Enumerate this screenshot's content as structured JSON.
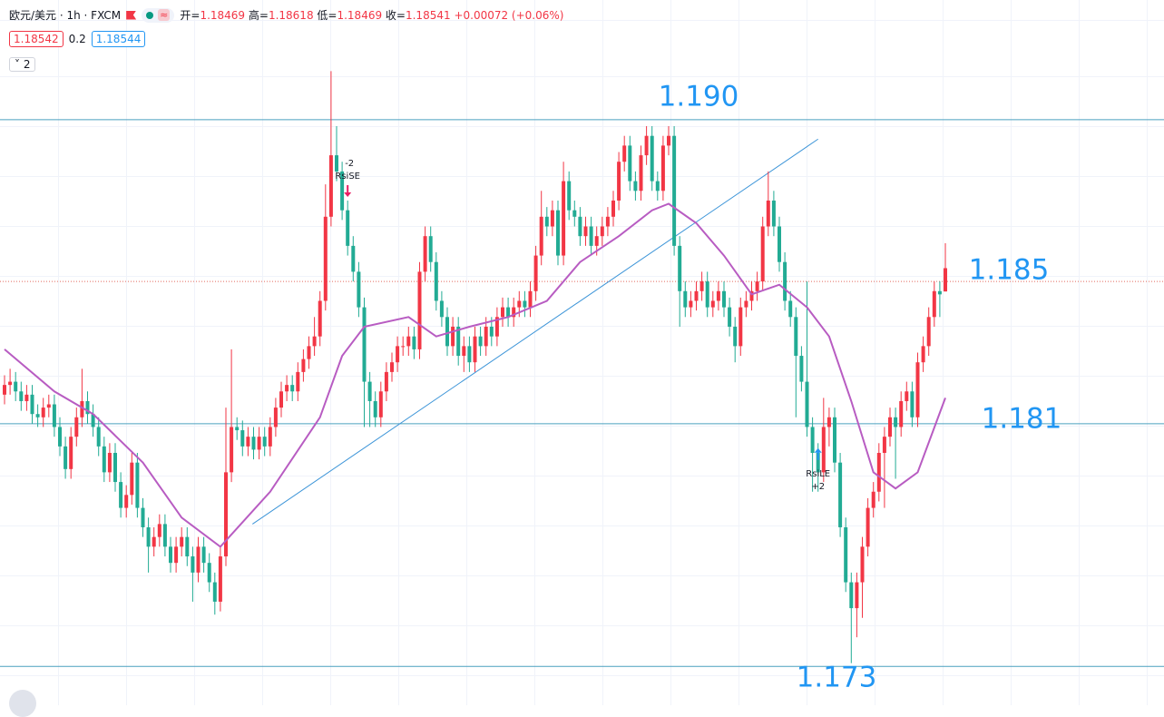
{
  "header": {
    "symbol": "欧元/美元 · 1h · FXCM",
    "ohlc": [
      {
        "label": "开=",
        "value": "1.18469"
      },
      {
        "label": "高=",
        "value": "1.18618"
      },
      {
        "label": "低=",
        "value": "1.18469"
      },
      {
        "label": "收=",
        "value": "1.18541"
      }
    ],
    "change": "+0.00072 (+0.06%)",
    "sell": "1.18542",
    "spread": "0.2",
    "buy": "1.18544",
    "collapse": "2"
  },
  "chart_data": {
    "type": "candlestick",
    "ylim": [
      1.1719,
      1.1937
    ],
    "up_color": "#f23645",
    "down_color": "#22ab94",
    "candles": [
      [
        1.1815,
        1.1821,
        1.1812,
        1.1818
      ],
      [
        1.1818,
        1.1823,
        1.1815,
        1.1819
      ],
      [
        1.1819,
        1.1822,
        1.1813,
        1.1816
      ],
      [
        1.1816,
        1.1819,
        1.181,
        1.1813
      ],
      [
        1.1813,
        1.1818,
        1.181,
        1.1815
      ],
      [
        1.1815,
        1.1818,
        1.1806,
        1.1809
      ],
      [
        1.1809,
        1.1812,
        1.1805,
        1.1808
      ],
      [
        1.1808,
        1.1814,
        1.1805,
        1.1811
      ],
      [
        1.1811,
        1.1815,
        1.1808,
        1.1812
      ],
      [
        1.1812,
        1.1815,
        1.1802,
        1.1805
      ],
      [
        1.1805,
        1.1808,
        1.1796,
        1.1799
      ],
      [
        1.1799,
        1.1802,
        1.1789,
        1.1792
      ],
      [
        1.1792,
        1.1805,
        1.1789,
        1.1802
      ],
      [
        1.1802,
        1.1811,
        1.1799,
        1.1808
      ],
      [
        1.1808,
        1.1823,
        1.1805,
        1.1813
      ],
      [
        1.1813,
        1.1816,
        1.1806,
        1.1809
      ],
      [
        1.1809,
        1.1812,
        1.1802,
        1.1805
      ],
      [
        1.1805,
        1.1808,
        1.1796,
        1.1799
      ],
      [
        1.1799,
        1.1802,
        1.1788,
        1.1791
      ],
      [
        1.1791,
        1.18,
        1.1788,
        1.1797
      ],
      [
        1.1797,
        1.18,
        1.1785,
        1.1788
      ],
      [
        1.1788,
        1.1791,
        1.1777,
        1.178
      ],
      [
        1.178,
        1.1787,
        1.1777,
        1.1784
      ],
      [
        1.1784,
        1.1797,
        1.1781,
        1.1794
      ],
      [
        1.1794,
        1.1797,
        1.1777,
        1.178
      ],
      [
        1.178,
        1.1783,
        1.1771,
        1.1774
      ],
      [
        1.1774,
        1.1777,
        1.176,
        1.1768
      ],
      [
        1.1768,
        1.1774,
        1.1765,
        1.1771
      ],
      [
        1.1771,
        1.1778,
        1.1768,
        1.1775
      ],
      [
        1.1775,
        1.1778,
        1.1765,
        1.1768
      ],
      [
        1.1768,
        1.1771,
        1.176,
        1.1763
      ],
      [
        1.1763,
        1.1771,
        1.176,
        1.1768
      ],
      [
        1.1768,
        1.1774,
        1.1765,
        1.1771
      ],
      [
        1.1771,
        1.1774,
        1.1762,
        1.1765
      ],
      [
        1.1765,
        1.1768,
        1.1751,
        1.176
      ],
      [
        1.176,
        1.1771,
        1.1757,
        1.1768
      ],
      [
        1.1768,
        1.1771,
        1.176,
        1.1763
      ],
      [
        1.1763,
        1.1766,
        1.1754,
        1.1757
      ],
      [
        1.1757,
        1.176,
        1.1747,
        1.1751
      ],
      [
        1.1751,
        1.1768,
        1.1748,
        1.1765
      ],
      [
        1.1765,
        1.1811,
        1.1762,
        1.1791
      ],
      [
        1.1791,
        1.1829,
        1.1788,
        1.1805
      ],
      [
        1.1805,
        1.1808,
        1.1801,
        1.1804
      ],
      [
        1.1804,
        1.1807,
        1.1796,
        1.1799
      ],
      [
        1.1799,
        1.1805,
        1.1796,
        1.1802
      ],
      [
        1.1802,
        1.1805,
        1.1795,
        1.1798
      ],
      [
        1.1798,
        1.1805,
        1.1795,
        1.1802
      ],
      [
        1.1802,
        1.1805,
        1.1796,
        1.1799
      ],
      [
        1.1799,
        1.1808,
        1.1796,
        1.1805
      ],
      [
        1.1805,
        1.1814,
        1.1802,
        1.1811
      ],
      [
        1.1811,
        1.1819,
        1.1808,
        1.1816
      ],
      [
        1.1816,
        1.1821,
        1.1813,
        1.1818
      ],
      [
        1.1818,
        1.1821,
        1.1813,
        1.1816
      ],
      [
        1.1816,
        1.1825,
        1.1813,
        1.1822
      ],
      [
        1.1822,
        1.1829,
        1.1819,
        1.1826
      ],
      [
        1.1826,
        1.1833,
        1.1823,
        1.183
      ],
      [
        1.183,
        1.1839,
        1.1827,
        1.1833
      ],
      [
        1.1833,
        1.1847,
        1.183,
        1.1844
      ],
      [
        1.1844,
        1.188,
        1.1841,
        1.187
      ],
      [
        1.187,
        1.1915,
        1.1867,
        1.1889
      ],
      [
        1.1889,
        1.1898,
        1.1881,
        1.1884
      ],
      [
        1.1884,
        1.1887,
        1.1869,
        1.1872
      ],
      [
        1.1872,
        1.1875,
        1.1858,
        1.1861
      ],
      [
        1.1861,
        1.1864,
        1.185,
        1.1853
      ],
      [
        1.1853,
        1.1856,
        1.1839,
        1.1842
      ],
      [
        1.1842,
        1.1845,
        1.1805,
        1.1819
      ],
      [
        1.1819,
        1.1822,
        1.1805,
        1.1813
      ],
      [
        1.1813,
        1.1816,
        1.1805,
        1.1808
      ],
      [
        1.1808,
        1.1819,
        1.1805,
        1.1816
      ],
      [
        1.1816,
        1.1825,
        1.1813,
        1.1822
      ],
      [
        1.1822,
        1.1828,
        1.1819,
        1.1825
      ],
      [
        1.1825,
        1.1833,
        1.1822,
        1.183
      ],
      [
        1.183,
        1.1833,
        1.1827,
        1.183
      ],
      [
        1.183,
        1.1836,
        1.1827,
        1.1833
      ],
      [
        1.1833,
        1.1836,
        1.1826,
        1.1829
      ],
      [
        1.1829,
        1.1856,
        1.1826,
        1.1853
      ],
      [
        1.1853,
        1.1867,
        1.185,
        1.1864
      ],
      [
        1.1864,
        1.1867,
        1.1853,
        1.1856
      ],
      [
        1.1856,
        1.1859,
        1.1841,
        1.1844
      ],
      [
        1.1844,
        1.1847,
        1.1836,
        1.1839
      ],
      [
        1.1839,
        1.1842,
        1.1827,
        1.183
      ],
      [
        1.183,
        1.1839,
        1.1827,
        1.1836
      ],
      [
        1.1836,
        1.1839,
        1.1824,
        1.1827
      ],
      [
        1.1827,
        1.1833,
        1.1822,
        1.183
      ],
      [
        1.183,
        1.1833,
        1.1822,
        1.1825
      ],
      [
        1.1825,
        1.1836,
        1.1822,
        1.1833
      ],
      [
        1.1833,
        1.1836,
        1.1827,
        1.183
      ],
      [
        1.183,
        1.1839,
        1.1827,
        1.1836
      ],
      [
        1.1836,
        1.1839,
        1.183,
        1.1833
      ],
      [
        1.1833,
        1.1842,
        1.183,
        1.1839
      ],
      [
        1.1839,
        1.1845,
        1.1836,
        1.1842
      ],
      [
        1.1842,
        1.1845,
        1.1836,
        1.1839
      ],
      [
        1.1839,
        1.1845,
        1.1836,
        1.1842
      ],
      [
        1.1842,
        1.1847,
        1.1839,
        1.1844
      ],
      [
        1.1844,
        1.1847,
        1.1839,
        1.1842
      ],
      [
        1.1842,
        1.185,
        1.1839,
        1.1847
      ],
      [
        1.1847,
        1.1861,
        1.1844,
        1.1858
      ],
      [
        1.1858,
        1.1878,
        1.1855,
        1.187
      ],
      [
        1.187,
        1.1873,
        1.1864,
        1.1867
      ],
      [
        1.1867,
        1.1875,
        1.1864,
        1.1872
      ],
      [
        1.1872,
        1.1875,
        1.1855,
        1.1858
      ],
      [
        1.1858,
        1.1887,
        1.1855,
        1.1881
      ],
      [
        1.1881,
        1.1884,
        1.1869,
        1.1872
      ],
      [
        1.1872,
        1.1875,
        1.1867,
        1.187
      ],
      [
        1.187,
        1.1873,
        1.1861,
        1.1864
      ],
      [
        1.1864,
        1.187,
        1.1861,
        1.1867
      ],
      [
        1.1867,
        1.187,
        1.1858,
        1.1861
      ],
      [
        1.1861,
        1.1867,
        1.1858,
        1.1864
      ],
      [
        1.1864,
        1.187,
        1.1861,
        1.1867
      ],
      [
        1.1867,
        1.1873,
        1.1864,
        1.187
      ],
      [
        1.187,
        1.1878,
        1.1867,
        1.1875
      ],
      [
        1.1875,
        1.189,
        1.1872,
        1.1887
      ],
      [
        1.1887,
        1.1895,
        1.1884,
        1.1892
      ],
      [
        1.1892,
        1.1895,
        1.1878,
        1.1881
      ],
      [
        1.1881,
        1.1884,
        1.1875,
        1.1878
      ],
      [
        1.1878,
        1.1892,
        1.1875,
        1.1889
      ],
      [
        1.1889,
        1.1898,
        1.1886,
        1.1895
      ],
      [
        1.1895,
        1.1898,
        1.1878,
        1.1881
      ],
      [
        1.1881,
        1.1884,
        1.1875,
        1.1878
      ],
      [
        1.1878,
        1.1895,
        1.1875,
        1.1892
      ],
      [
        1.1892,
        1.1898,
        1.1889,
        1.1895
      ],
      [
        1.1895,
        1.1898,
        1.1858,
        1.1861
      ],
      [
        1.1861,
        1.1864,
        1.1836,
        1.1847
      ],
      [
        1.1847,
        1.185,
        1.1839,
        1.1842
      ],
      [
        1.1842,
        1.1847,
        1.1839,
        1.1844
      ],
      [
        1.1844,
        1.185,
        1.1841,
        1.1847
      ],
      [
        1.1847,
        1.1853,
        1.1844,
        1.185
      ],
      [
        1.185,
        1.1853,
        1.1839,
        1.1842
      ],
      [
        1.1842,
        1.1847,
        1.1839,
        1.1844
      ],
      [
        1.1844,
        1.185,
        1.1841,
        1.1847
      ],
      [
        1.1847,
        1.185,
        1.1839,
        1.1842
      ],
      [
        1.1842,
        1.1845,
        1.1833,
        1.1836
      ],
      [
        1.1836,
        1.1839,
        1.1825,
        1.183
      ],
      [
        1.183,
        1.1845,
        1.1827,
        1.1842
      ],
      [
        1.1842,
        1.1847,
        1.1839,
        1.1844
      ],
      [
        1.1844,
        1.185,
        1.1841,
        1.1847
      ],
      [
        1.1847,
        1.1853,
        1.1844,
        1.185
      ],
      [
        1.185,
        1.187,
        1.1847,
        1.1867
      ],
      [
        1.1867,
        1.1884,
        1.1864,
        1.1875
      ],
      [
        1.1875,
        1.1878,
        1.1864,
        1.1867
      ],
      [
        1.1867,
        1.187,
        1.1853,
        1.1856
      ],
      [
        1.1856,
        1.1859,
        1.1841,
        1.1844
      ],
      [
        1.1844,
        1.1847,
        1.1836,
        1.1839
      ],
      [
        1.1839,
        1.1842,
        1.1808,
        1.1827
      ],
      [
        1.1827,
        1.183,
        1.1816,
        1.1819
      ],
      [
        1.1819,
        1.185,
        1.1802,
        1.1805
      ],
      [
        1.1805,
        1.1808,
        1.1785,
        1.1797
      ],
      [
        1.1797,
        1.18,
        1.1785,
        1.1791
      ],
      [
        1.1791,
        1.1814,
        1.1788,
        1.1805
      ],
      [
        1.1805,
        1.1811,
        1.1799,
        1.1808
      ],
      [
        1.1808,
        1.1811,
        1.1791,
        1.1794
      ],
      [
        1.1794,
        1.1797,
        1.1771,
        1.1774
      ],
      [
        1.1774,
        1.1777,
        1.1754,
        1.1757
      ],
      [
        1.1757,
        1.176,
        1.1732,
        1.1749
      ],
      [
        1.1749,
        1.176,
        1.174,
        1.1757
      ],
      [
        1.1757,
        1.1771,
        1.1746,
        1.1768
      ],
      [
        1.1768,
        1.1783,
        1.1765,
        1.178
      ],
      [
        1.178,
        1.1788,
        1.1777,
        1.1785
      ],
      [
        1.1785,
        1.18,
        1.1782,
        1.1797
      ],
      [
        1.1797,
        1.1805,
        1.178,
        1.1802
      ],
      [
        1.1802,
        1.1811,
        1.1799,
        1.1808
      ],
      [
        1.1808,
        1.1811,
        1.1789,
        1.1805
      ],
      [
        1.1805,
        1.1816,
        1.1802,
        1.1813
      ],
      [
        1.1813,
        1.1819,
        1.181,
        1.1816
      ],
      [
        1.1816,
        1.1819,
        1.1805,
        1.1808
      ],
      [
        1.1808,
        1.1828,
        1.1805,
        1.1825
      ],
      [
        1.1825,
        1.1833,
        1.1822,
        1.183
      ],
      [
        1.183,
        1.1842,
        1.1827,
        1.1839
      ],
      [
        1.1839,
        1.185,
        1.1836,
        1.1847
      ],
      [
        1.1847,
        1.185,
        1.1839,
        1.1846
      ],
      [
        1.18469,
        1.18618,
        1.18469,
        1.18541
      ]
    ],
    "moving_average": {
      "color": "#b85cc2",
      "x": [
        0,
        9,
        16,
        25,
        32,
        39,
        48,
        57,
        61,
        65,
        73,
        78,
        84,
        91,
        98,
        104,
        111,
        117,
        120,
        125,
        130,
        135,
        140,
        145,
        149,
        153,
        157,
        161,
        165,
        170
      ],
      "values": [
        1.1829,
        1.1816,
        1.1809,
        1.1794,
        1.1777,
        1.1768,
        1.1785,
        1.1808,
        1.1827,
        1.1836,
        1.1839,
        1.1833,
        1.1836,
        1.1839,
        1.1844,
        1.1856,
        1.1864,
        1.1872,
        1.1874,
        1.1868,
        1.1858,
        1.1846,
        1.1849,
        1.1842,
        1.1833,
        1.1813,
        1.1791,
        1.1786,
        1.1791,
        1.1814
      ]
    },
    "trendline": {
      "color": "#3d95d8",
      "x": [
        44.8,
        147
      ],
      "values": [
        1.1775,
        1.1894
      ]
    },
    "levels": [
      {
        "value": 1.19,
        "label": "1.190",
        "dotted": false
      },
      {
        "value": 1.185,
        "label": "1.185",
        "dotted": true
      },
      {
        "value": 1.1806,
        "label": "1.181",
        "dotted": false
      },
      {
        "value": 1.1731,
        "label": "1.173",
        "dotted": false
      }
    ],
    "signals": [
      {
        "candle": 62,
        "name": "RsiSE",
        "qty": "-2",
        "side": "short"
      },
      {
        "candle": 147,
        "name": "RsiLE",
        "qty": "+2",
        "side": "long"
      }
    ]
  }
}
